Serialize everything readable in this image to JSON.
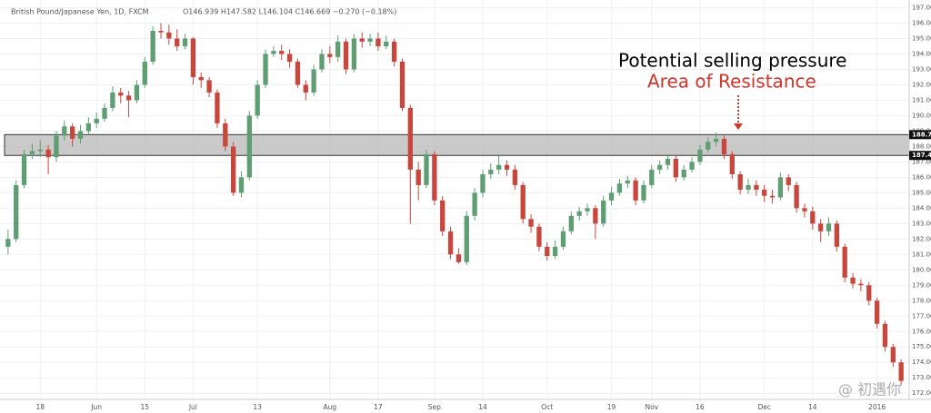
{
  "chart_data": {
    "type": "candlestick",
    "title": "British Pound/Japanese Yen, 1D, FXCM",
    "subtitle": "O146.939 H147.582 L146.104 C146.669 −0.270 (−0.18%)",
    "annotations": [
      "Potential selling pressure",
      "Area of Resistance"
    ],
    "watermark": "@ 初遇你",
    "colors": {
      "up": "#5f9e73",
      "down": "#c9463d",
      "band": "#b4b4b4",
      "annotation_1": "#000000",
      "annotation_2": "#d2352b"
    },
    "grid": true,
    "band": [
      187.42,
      188.77
    ],
    "open": [
      181.5,
      182.0,
      185.5,
      187.5,
      187.7,
      187.8,
      187.3,
      188.7,
      189.3,
      188.5,
      189.0,
      189.5,
      189.8,
      190.5,
      191.5,
      191.3,
      191.0,
      192.0,
      193.5,
      195.5,
      195.4,
      195.0,
      194.5,
      195.0,
      192.5,
      192.3,
      191.5,
      189.5,
      188.0,
      185.0,
      186.0,
      190.0,
      192.0,
      194.0,
      194.2,
      194.0,
      193.5,
      192.0,
      191.5,
      193.0,
      194.0,
      193.8,
      194.8,
      193.0,
      195.0,
      194.8,
      195.0,
      194.5,
      194.8,
      193.5,
      190.5,
      186.5,
      185.5,
      187.5,
      184.5,
      182.5,
      181.0,
      180.5,
      183.5,
      185.0,
      186.2,
      186.5,
      186.8,
      186.5,
      185.5,
      183.3,
      182.8,
      181.5,
      180.9,
      181.5,
      182.5,
      183.5,
      183.8,
      184.0,
      183.0,
      184.5,
      185.0,
      185.6,
      185.8,
      184.5,
      185.5,
      186.5,
      186.8,
      187.2,
      186.0,
      186.5,
      187.0,
      187.8,
      188.3,
      188.5,
      187.5,
      186.2,
      185.2,
      185.5,
      185.2,
      184.8,
      184.7,
      186.0,
      185.5,
      184.0,
      183.8,
      183.0,
      182.5,
      183.0,
      181.5,
      179.5,
      179.1,
      179.0,
      178.0,
      176.5,
      175.0,
      174.0
    ],
    "high": [
      182.6,
      185.8,
      187.8,
      188.2,
      188.4,
      188.1,
      189.0,
      189.7,
      189.5,
      189.4,
      189.9,
      190.2,
      190.8,
      191.9,
      191.8,
      191.6,
      192.3,
      193.8,
      195.8,
      196.0,
      195.9,
      195.6,
      195.3,
      195.1,
      192.8,
      192.5,
      191.7,
      189.8,
      188.3,
      186.4,
      190.3,
      192.3,
      194.3,
      194.5,
      194.6,
      194.3,
      193.7,
      192.3,
      193.3,
      194.3,
      194.5,
      195.2,
      195.0,
      195.3,
      195.4,
      195.3,
      195.4,
      195.2,
      195.0,
      193.7,
      190.7,
      187.0,
      187.8,
      187.7,
      184.8,
      182.8,
      181.4,
      183.8,
      185.3,
      186.5,
      186.9,
      187.5,
      187.1,
      186.8,
      185.7,
      183.6,
      183.0,
      181.8,
      181.9,
      182.8,
      183.8,
      184.1,
      184.3,
      184.2,
      184.8,
      185.4,
      185.9,
      186.1,
      186.0,
      185.8,
      186.8,
      187.1,
      187.5,
      187.4,
      186.8,
      187.3,
      188.1,
      188.6,
      188.9,
      188.7,
      187.7,
      186.4,
      185.9,
      185.8,
      185.5,
      185.2,
      186.3,
      186.2,
      185.7,
      184.3,
      184.1,
      183.3,
      183.4,
      183.2,
      181.7,
      179.8,
      179.4,
      179.2,
      178.2,
      176.7,
      175.2,
      174.2
    ],
    "low": [
      181.0,
      181.8,
      185.3,
      187.2,
      187.3,
      186.2,
      187.0,
      188.4,
      188.0,
      188.2,
      188.8,
      189.2,
      189.6,
      190.3,
      190.8,
      189.9,
      190.8,
      191.8,
      193.3,
      195.0,
      194.6,
      194.2,
      194.3,
      192.0,
      191.8,
      191.2,
      189.2,
      187.7,
      184.8,
      184.7,
      185.8,
      189.8,
      191.8,
      193.8,
      193.6,
      193.1,
      191.8,
      191.0,
      191.3,
      192.8,
      193.4,
      193.5,
      192.7,
      192.8,
      194.4,
      194.5,
      194.2,
      194.3,
      193.2,
      190.3,
      183.0,
      184.5,
      185.3,
      184.2,
      182.2,
      180.7,
      180.4,
      180.3,
      183.2,
      184.7,
      185.9,
      186.2,
      186.1,
      185.2,
      183.0,
      182.4,
      181.2,
      180.6,
      180.7,
      181.3,
      182.3,
      183.2,
      183.5,
      182.0,
      182.8,
      184.2,
      184.8,
      185.3,
      184.2,
      184.3,
      185.3,
      186.2,
      186.5,
      185.7,
      185.8,
      186.3,
      186.8,
      187.6,
      188.0,
      187.2,
      185.9,
      184.9,
      184.9,
      184.8,
      184.4,
      184.3,
      184.5,
      185.1,
      183.7,
      183.4,
      182.6,
      181.8,
      182.2,
      181.2,
      179.2,
      178.8,
      178.6,
      177.7,
      176.2,
      174.7,
      173.7,
      172.5
    ],
    "close": [
      182.0,
      185.5,
      187.5,
      187.7,
      187.8,
      187.3,
      188.7,
      189.3,
      188.5,
      189.0,
      189.5,
      189.8,
      190.5,
      191.5,
      191.3,
      191.0,
      192.0,
      193.5,
      195.5,
      195.4,
      195.0,
      194.5,
      195.0,
      192.5,
      192.3,
      191.5,
      189.5,
      188.0,
      185.0,
      186.0,
      190.0,
      192.0,
      194.0,
      194.2,
      194.0,
      193.5,
      192.0,
      191.5,
      193.0,
      194.0,
      193.8,
      194.8,
      193.0,
      195.0,
      194.8,
      195.0,
      194.5,
      194.8,
      193.5,
      190.5,
      186.5,
      185.5,
      187.5,
      184.5,
      182.5,
      181.0,
      180.5,
      183.5,
      185.0,
      186.2,
      186.5,
      186.8,
      186.5,
      185.5,
      183.3,
      182.8,
      181.5,
      180.9,
      181.5,
      182.5,
      183.5,
      183.8,
      184.0,
      183.0,
      184.5,
      185.0,
      185.6,
      185.8,
      184.5,
      185.5,
      186.5,
      186.8,
      187.2,
      186.0,
      186.5,
      187.0,
      187.8,
      188.3,
      188.5,
      187.5,
      186.2,
      185.2,
      185.5,
      185.2,
      184.8,
      184.7,
      186.0,
      185.5,
      184.0,
      183.8,
      183.0,
      182.5,
      183.0,
      181.5,
      179.5,
      179.1,
      179.0,
      178.0,
      176.5,
      175.0,
      174.0,
      172.8
    ],
    "xlim": [
      -1,
      112
    ],
    "xticks": [
      {
        "value": 4,
        "label": "18"
      },
      {
        "value": 11,
        "label": "Jun"
      },
      {
        "value": 17,
        "label": "15"
      },
      {
        "value": 23,
        "label": "Jul"
      },
      {
        "value": 31,
        "label": "13"
      },
      {
        "value": 40,
        "label": "Aug"
      },
      {
        "value": 46,
        "label": "17"
      },
      {
        "value": 53,
        "label": "Sep"
      },
      {
        "value": 59,
        "label": "14"
      },
      {
        "value": 67,
        "label": "Oct"
      },
      {
        "value": 75,
        "label": "19"
      },
      {
        "value": 80,
        "label": "Nov"
      },
      {
        "value": 86,
        "label": "16"
      },
      {
        "value": 94,
        "label": "Dec"
      },
      {
        "value": 100,
        "label": "14"
      },
      {
        "value": 108,
        "label": "2016"
      }
    ],
    "ylim": [
      171.6,
      197.5
    ],
    "yticks": [
      {
        "value": 172,
        "label": "172.00"
      },
      {
        "value": 173,
        "label": "173.00"
      },
      {
        "value": 174,
        "label": "174.00"
      },
      {
        "value": 175,
        "label": "175.00"
      },
      {
        "value": 176,
        "label": "176.00"
      },
      {
        "value": 177,
        "label": "177.00"
      },
      {
        "value": 178,
        "label": "178.00"
      },
      {
        "value": 179,
        "label": "179.00"
      },
      {
        "value": 180,
        "label": "180.00"
      },
      {
        "value": 181,
        "label": "181.00"
      },
      {
        "value": 182,
        "label": "182.00"
      },
      {
        "value": 183,
        "label": "183.00"
      },
      {
        "value": 184,
        "label": "184.00"
      },
      {
        "value": 185,
        "label": "185.00"
      },
      {
        "value": 186,
        "label": "186.00"
      },
      {
        "value": 187,
        "label": "187.00"
      },
      {
        "value": 188,
        "label": "188.00"
      },
      {
        "value": 189,
        "label": "189.00"
      },
      {
        "value": 190,
        "label": "190.00"
      },
      {
        "value": 191,
        "label": "191.00"
      },
      {
        "value": 192,
        "label": "192.00"
      },
      {
        "value": 193,
        "label": "193.00"
      },
      {
        "value": 194,
        "label": "194.00"
      },
      {
        "value": 195,
        "label": "195.00"
      },
      {
        "value": 196,
        "label": "196.00"
      },
      {
        "value": 197,
        "label": "197.00"
      }
    ]
  }
}
